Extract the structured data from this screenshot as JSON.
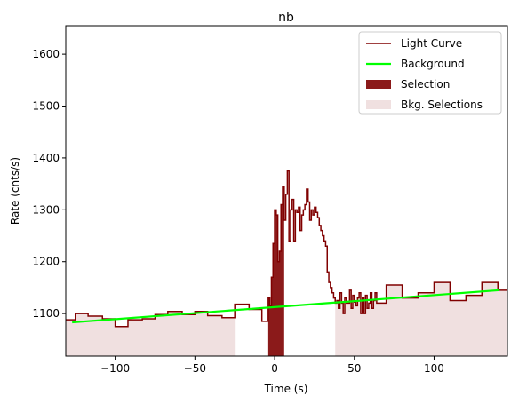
{
  "chart_data": {
    "type": "line",
    "title": "nb",
    "xlabel": "Time (s)",
    "ylabel": "Rate (cnts/s)",
    "xlim": [
      -131,
      146
    ],
    "ylim": [
      1018,
      1655
    ],
    "xticks": [
      -100,
      -50,
      0,
      50,
      100
    ],
    "yticks": [
      1100,
      1200,
      1300,
      1400,
      1500,
      1600
    ],
    "xtick_labels": [
      "−100",
      "−50",
      "0",
      "50",
      "100"
    ],
    "ytick_labels": [
      "1100",
      "1200",
      "1300",
      "1400",
      "1500",
      "1600"
    ],
    "grid": false,
    "legend_position": "top-right",
    "colors": {
      "light_curve": "#800000",
      "background": "#00ff00",
      "selection": "#8b1a1a",
      "bkg_selection": "#f0e0e0"
    },
    "legend": [
      {
        "key": "light_curve",
        "label": "Light Curve"
      },
      {
        "key": "background",
        "label": "Background"
      },
      {
        "key": "selection",
        "label": "Selection"
      },
      {
        "key": "bkg_selection",
        "label": "Bkg. Selections"
      }
    ],
    "light_curve": {
      "x": [
        -131,
        -125,
        -117,
        -108,
        -100,
        -92,
        -83,
        -75,
        -67,
        -58,
        -50,
        -42,
        -33,
        -25,
        -16,
        -8,
        -4,
        -3,
        -2,
        -1,
        0,
        1,
        2,
        3,
        4,
        5,
        6,
        7,
        8,
        9,
        10,
        11,
        12,
        13,
        14,
        15,
        16,
        17,
        18,
        19,
        20,
        21,
        22,
        23,
        24,
        25,
        26,
        27,
        28,
        29,
        30,
        31,
        32,
        33,
        34,
        35,
        36,
        37,
        38,
        39,
        40,
        41,
        42,
        43,
        44,
        45,
        46,
        47,
        48,
        49,
        50,
        51,
        52,
        53,
        54,
        55,
        56,
        57,
        58,
        59,
        60,
        61,
        62,
        63,
        64,
        70,
        80,
        90,
        100,
        110,
        120,
        130,
        140,
        146
      ],
      "y": [
        1088,
        1100,
        1095,
        1090,
        1075,
        1088,
        1090,
        1098,
        1104,
        1098,
        1104,
        1096,
        1092,
        1118,
        1108,
        1085,
        1130,
        1115,
        1170,
        1235,
        1300,
        1290,
        1200,
        1220,
        1310,
        1345,
        1280,
        1330,
        1375,
        1240,
        1300,
        1320,
        1240,
        1300,
        1295,
        1305,
        1260,
        1290,
        1300,
        1310,
        1340,
        1315,
        1280,
        1300,
        1290,
        1305,
        1295,
        1285,
        1270,
        1260,
        1250,
        1240,
        1230,
        1180,
        1160,
        1150,
        1140,
        1130,
        1120,
        1125,
        1110,
        1140,
        1120,
        1100,
        1130,
        1120,
        1120,
        1145,
        1110,
        1135,
        1122,
        1115,
        1130,
        1140,
        1100,
        1130,
        1100,
        1135,
        1110,
        1120,
        1140,
        1110,
        1125,
        1140,
        1120,
        1155,
        1130,
        1140,
        1160,
        1125,
        1135,
        1160,
        1145,
        1145
      ]
    },
    "background_line": {
      "x": [
        -127,
        141
      ],
      "y": [
        1083,
        1145
      ]
    },
    "selection": {
      "x": [
        -4,
        6
      ]
    },
    "bkg_selections": [
      {
        "x": [
          -131,
          -25
        ]
      },
      {
        "x": [
          38,
          146
        ]
      }
    ]
  }
}
